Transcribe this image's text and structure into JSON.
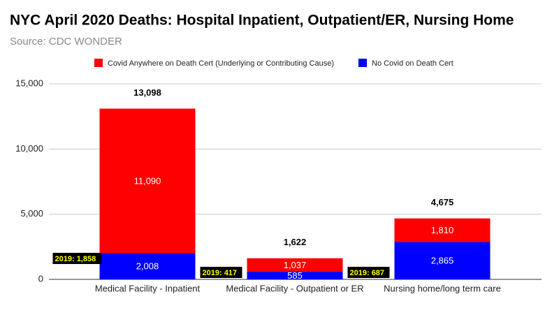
{
  "chart_data": {
    "type": "stacked-bar",
    "title": "NYC April 2020 Deaths: Hospital Inpatient, Outpatient/ER, Nursing Home",
    "subtitle": "Source: CDC WONDER",
    "categories": [
      "Medical Facility - Inpatient",
      "Medical Facility - Outpatient or ER",
      "Nursing home/long term care"
    ],
    "series": [
      {
        "name": "No Covid on Death Cert",
        "color": "#0000ff",
        "values": [
          2008,
          585,
          2865
        ],
        "value_labels": [
          "2,008",
          "585",
          "2,865"
        ]
      },
      {
        "name": "Covid Anywhere on Death Cert (Underlying or Contributing Cause)",
        "color": "#ff0000",
        "values": [
          11090,
          1037,
          1810
        ],
        "value_labels": [
          "11,090",
          "1,037",
          "1,810"
        ]
      }
    ],
    "totals": {
      "values": [
        13098,
        1622,
        4675
      ],
      "value_labels": [
        "13,098",
        "1,622",
        "4,675"
      ]
    },
    "annotations": [
      "2019: 1,858",
      "2019: 417",
      "2019: 687"
    ],
    "ylim": [
      0,
      15000
    ],
    "yticks": [
      0,
      {
        "value": 5000,
        "label": "5,000"
      },
      {
        "value": 10000,
        "label": "10,000"
      },
      {
        "value": 15000,
        "label": "15,000"
      }
    ],
    "grid": true,
    "legend": "top"
  }
}
